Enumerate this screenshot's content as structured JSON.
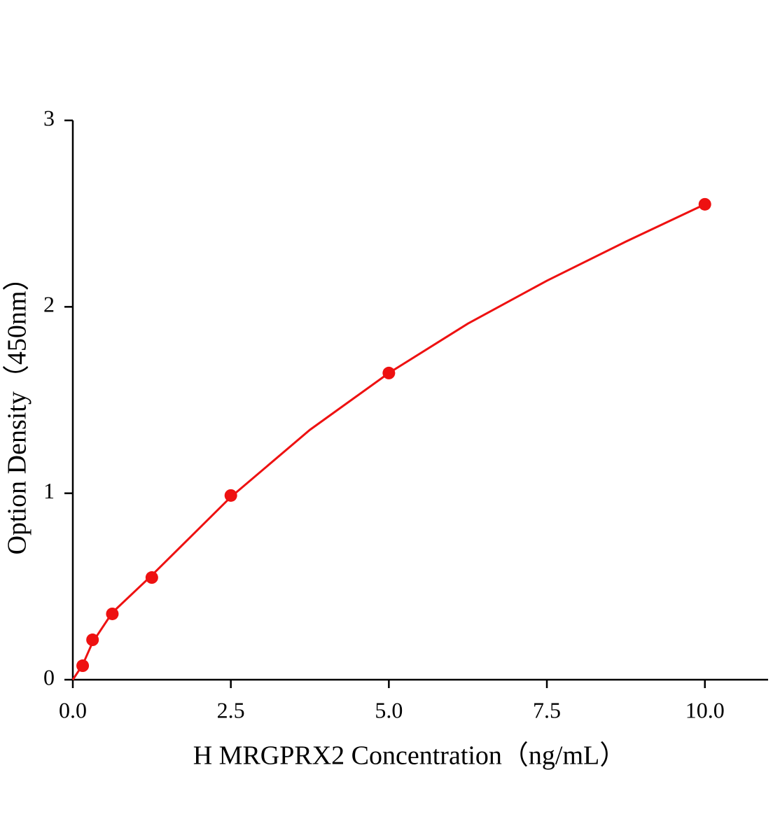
{
  "chart_data": {
    "type": "scatter",
    "x_label": "H MRGPRX2 Concentration（ng/mL）",
    "y_label": "Option Density（450nm）",
    "xlim": [
      0,
      11
    ],
    "ylim": [
      0,
      3
    ],
    "xticks": [
      {
        "value": 0,
        "label": "0.0"
      },
      2.5,
      {
        "value": 5,
        "label": "5.0"
      },
      7.5,
      {
        "value": 10,
        "label": "10.0"
      }
    ],
    "yticks": [
      0,
      1,
      2,
      3
    ],
    "series": [
      {
        "type": "scatter",
        "color": "#ee1111",
        "x": [
          0.156,
          0.312,
          0.625,
          1.25,
          2.5,
          5,
          10
        ],
        "values": [
          0.075,
          0.214,
          0.353,
          0.548,
          0.988,
          1.645,
          2.55
        ]
      },
      {
        "type": "line",
        "color": "#ee1111",
        "x": [
          0,
          0.156,
          0.312,
          0.625,
          1.25,
          2.5,
          3.75,
          5,
          6.25,
          7.5,
          8.75,
          10
        ],
        "values": [
          0,
          0.08,
          0.2,
          0.36,
          0.56,
          0.98,
          1.34,
          1.645,
          1.91,
          2.14,
          2.35,
          2.55
        ]
      }
    ]
  }
}
